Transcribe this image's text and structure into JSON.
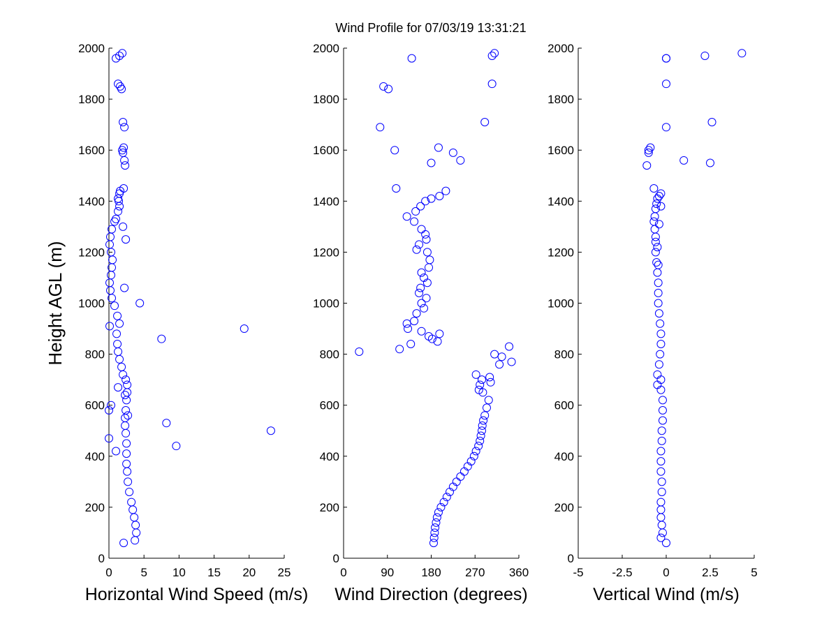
{
  "title": "Wind Profile for  07/03/19 13:31:21",
  "ylabel": "Height AGL (m)",
  "colors": {
    "marker": "#0000ff",
    "axis": "#000000",
    "background": "#ffffff"
  },
  "chart_data": [
    {
      "type": "scatter",
      "xlabel": "Horizontal Wind Speed (m/s)",
      "ylabel": "Height AGL (m)",
      "xlim": [
        0,
        25
      ],
      "ylim": [
        0,
        2000
      ],
      "xticks": [
        "0",
        "5",
        "10",
        "15",
        "20",
        "25"
      ],
      "yticks": [
        "0",
        "200",
        "400",
        "600",
        "800",
        "1000",
        "1200",
        "1400",
        "1600",
        "1800",
        "2000"
      ],
      "grid": false,
      "x": [
        2.1,
        3.7,
        3.9,
        3.8,
        3.6,
        3.4,
        3.2,
        2.9,
        2.7,
        2.6,
        2.5,
        2.5,
        2.5,
        2.4,
        2.3,
        2.3,
        2.4,
        2.5,
        2.6,
        2.6,
        2.4,
        2.0,
        1.8,
        1.5,
        1.3,
        1.2,
        1.1,
        1.5,
        1.2,
        0.8,
        0.4,
        0.2,
        0.1,
        0.3,
        0.4,
        0.5,
        0.3,
        0.1,
        0.2,
        0.4,
        0.8,
        1.0,
        1.3,
        1.5,
        1.4,
        1.3,
        1.5,
        1.6,
        2.1,
        2.3,
        2.2,
        2.0,
        1.9,
        2.1,
        2.2,
        2.0,
        1.8,
        1.6,
        1.3,
        1.0,
        1.5,
        1.9,
        2.4,
        2.0,
        4.4,
        2.2,
        0.1,
        7.5,
        19.3,
        2.3,
        1.3,
        0.0,
        0.3,
        8.2,
        2.7,
        23.1,
        0.0,
        9.6,
        1.0
      ],
      "y": [
        60,
        70,
        100,
        130,
        160,
        190,
        220,
        260,
        300,
        340,
        370,
        410,
        450,
        490,
        520,
        550,
        580,
        620,
        650,
        680,
        700,
        720,
        750,
        780,
        810,
        840,
        880,
        920,
        950,
        990,
        1020,
        1050,
        1080,
        1110,
        1140,
        1170,
        1200,
        1230,
        1260,
        1290,
        1320,
        1330,
        1360,
        1380,
        1400,
        1410,
        1430,
        1440,
        1450,
        1540,
        1560,
        1590,
        1600,
        1610,
        1690,
        1710,
        1840,
        1850,
        1860,
        1960,
        1970,
        1980,
        1250,
        1300,
        1000,
        1060,
        910,
        860,
        900,
        640,
        670,
        580,
        600,
        530,
        560,
        500,
        470,
        440,
        420
      ]
    },
    {
      "type": "scatter",
      "xlabel": "Wind Direction (degrees)",
      "ylabel": "",
      "xlim": [
        0,
        360
      ],
      "ylim": [
        0,
        2000
      ],
      "xticks": [
        "0",
        "90",
        "180",
        "270",
        "360"
      ],
      "yticks": [
        "0",
        "200",
        "400",
        "600",
        "800",
        "1000",
        "1200",
        "1400",
        "1600",
        "1800",
        "2000"
      ],
      "grid": false,
      "x": [
        185,
        186,
        187,
        188,
        190,
        192,
        195,
        200,
        206,
        212,
        218,
        225,
        232,
        240,
        248,
        255,
        262,
        268,
        272,
        277,
        280,
        282,
        284,
        285,
        287,
        290,
        294,
        298,
        286,
        280,
        302,
        300,
        284,
        278,
        272,
        345,
        310,
        325,
        320,
        340,
        32,
        115,
        138,
        175,
        182,
        193,
        197,
        160,
        132,
        130,
        145,
        150,
        165,
        160,
        170,
        155,
        158,
        172,
        165,
        160,
        175,
        177,
        172,
        150,
        155,
        170,
        168,
        160,
        145,
        130,
        148,
        158,
        168,
        180,
        197,
        210,
        108,
        180,
        225,
        195,
        240,
        105,
        75,
        290,
        82,
        92,
        305,
        140,
        305,
        310
      ],
      "y": [
        60,
        80,
        100,
        120,
        140,
        160,
        180,
        200,
        220,
        240,
        260,
        280,
        300,
        320,
        340,
        360,
        380,
        400,
        420,
        440,
        460,
        480,
        500,
        520,
        540,
        560,
        590,
        620,
        650,
        680,
        690,
        710,
        700,
        660,
        720,
        770,
        800,
        790,
        760,
        830,
        810,
        820,
        840,
        870,
        860,
        850,
        880,
        890,
        900,
        920,
        930,
        960,
        980,
        1000,
        1020,
        1040,
        1060,
        1080,
        1100,
        1120,
        1140,
        1170,
        1200,
        1210,
        1230,
        1250,
        1270,
        1290,
        1320,
        1340,
        1360,
        1380,
        1400,
        1410,
        1420,
        1440,
        1450,
        1550,
        1590,
        1610,
        1560,
        1600,
        1690,
        1710,
        1850,
        1840,
        1860,
        1960,
        1970,
        1980
      ]
    },
    {
      "type": "scatter",
      "xlabel": "Vertical Wind (m/s)",
      "ylabel": "",
      "xlim": [
        -5,
        5
      ],
      "ylim": [
        0,
        2000
      ],
      "xticks": [
        "-5",
        "-2.5",
        "0",
        "2.5",
        "5"
      ],
      "yticks": [
        "0",
        "200",
        "400",
        "600",
        "800",
        "1000",
        "1200",
        "1400",
        "1600",
        "1800",
        "2000"
      ],
      "grid": false,
      "x": [
        0.0,
        -0.3,
        -0.2,
        -0.25,
        -0.3,
        -0.3,
        -0.3,
        -0.25,
        -0.25,
        -0.3,
        -0.3,
        -0.3,
        -0.25,
        -0.25,
        -0.2,
        -0.2,
        -0.2,
        -0.3,
        -0.3,
        -0.5,
        -0.5,
        -0.4,
        -0.35,
        -0.3,
        -0.3,
        -0.35,
        -0.4,
        -0.45,
        -0.45,
        -0.45,
        -0.5,
        -0.55,
        -0.6,
        -0.6,
        -0.6,
        -0.65,
        -0.7,
        -0.65,
        -0.6,
        -0.55,
        -0.5,
        -0.4,
        -0.3,
        -0.7,
        -0.3,
        -0.4,
        -0.5,
        -0.45,
        -1.0,
        -1.1,
        -0.9,
        -1.0,
        1.0,
        2.5,
        0.0,
        2.6,
        0.0,
        0.0,
        0.0,
        2.2,
        4.3
      ],
      "y": [
        60,
        80,
        100,
        130,
        160,
        190,
        220,
        260,
        300,
        340,
        380,
        420,
        460,
        500,
        540,
        580,
        620,
        660,
        700,
        680,
        720,
        760,
        800,
        840,
        880,
        920,
        960,
        1000,
        1040,
        1080,
        1120,
        1160,
        1200,
        1240,
        1260,
        1290,
        1320,
        1340,
        1370,
        1390,
        1410,
        1420,
        1430,
        1450,
        1380,
        1310,
        1220,
        1150,
        1600,
        1540,
        1610,
        1590,
        1560,
        1550,
        1690,
        1710,
        1860,
        1960,
        1960,
        1970,
        1980
      ]
    }
  ]
}
